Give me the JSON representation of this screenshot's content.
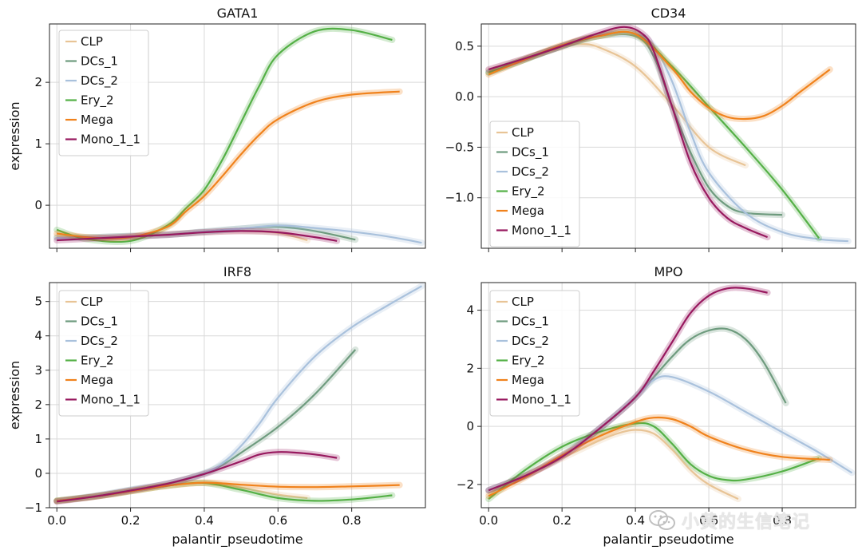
{
  "watermark": {
    "text": "小黄的生信笔记",
    "icon": "wechat-icon"
  },
  "chart_data": [
    {
      "type": "line",
      "title": "GATA1",
      "xlabel": "",
      "ylabel": "expression",
      "xlim": [
        -0.02,
        1.0
      ],
      "ylim": [
        -0.7,
        2.95
      ],
      "xticks": [
        0.0,
        0.2,
        0.4,
        0.6,
        0.8
      ],
      "xticklabels": [
        "",
        "",
        "",
        "",
        ""
      ],
      "yticks": [
        0,
        1,
        2
      ],
      "yticklabels": [
        "0",
        "1",
        "2"
      ],
      "grid": true,
      "legend": {
        "position": "top-left",
        "entries": [
          "CLP",
          "DCs_1",
          "DCs_2",
          "Ery_2",
          "Mega",
          "Mono_1_1"
        ]
      },
      "series": [
        {
          "name": "CLP",
          "color": "#e8c496",
          "x": [
            0.0,
            0.1,
            0.2,
            0.3,
            0.4,
            0.5,
            0.6,
            0.68
          ],
          "y": [
            -0.5,
            -0.52,
            -0.5,
            -0.47,
            -0.44,
            -0.42,
            -0.45,
            -0.57
          ]
        },
        {
          "name": "DCs_1",
          "color": "#6e9b7e",
          "x": [
            0.0,
            0.1,
            0.2,
            0.3,
            0.4,
            0.5,
            0.6,
            0.7,
            0.81
          ],
          "y": [
            -0.53,
            -0.52,
            -0.5,
            -0.48,
            -0.43,
            -0.38,
            -0.35,
            -0.42,
            -0.56
          ]
        },
        {
          "name": "DCs_2",
          "color": "#a9c1dc",
          "x": [
            0.0,
            0.1,
            0.2,
            0.3,
            0.4,
            0.5,
            0.6,
            0.7,
            0.8,
            0.9,
            0.99
          ],
          "y": [
            -0.53,
            -0.52,
            -0.5,
            -0.48,
            -0.43,
            -0.38,
            -0.33,
            -0.37,
            -0.43,
            -0.51,
            -0.61
          ]
        },
        {
          "name": "Ery_2",
          "color": "#54b046",
          "x": [
            0.0,
            0.08,
            0.2,
            0.3,
            0.35,
            0.4,
            0.45,
            0.5,
            0.55,
            0.6,
            0.7,
            0.8,
            0.91
          ],
          "y": [
            -0.4,
            -0.55,
            -0.58,
            -0.33,
            -0.05,
            0.25,
            0.75,
            1.35,
            1.95,
            2.45,
            2.83,
            2.85,
            2.69
          ]
        },
        {
          "name": "Mega",
          "color": "#f0821c",
          "x": [
            0.0,
            0.1,
            0.2,
            0.3,
            0.35,
            0.4,
            0.45,
            0.5,
            0.55,
            0.6,
            0.7,
            0.8,
            0.93
          ],
          "y": [
            -0.46,
            -0.53,
            -0.52,
            -0.35,
            -0.1,
            0.15,
            0.48,
            0.83,
            1.15,
            1.4,
            1.68,
            1.8,
            1.85
          ]
        },
        {
          "name": "Mono_1_1",
          "color": "#98195f",
          "x": [
            0.0,
            0.1,
            0.2,
            0.3,
            0.4,
            0.5,
            0.6,
            0.7,
            0.76
          ],
          "y": [
            -0.57,
            -0.54,
            -0.51,
            -0.48,
            -0.44,
            -0.42,
            -0.44,
            -0.52,
            -0.58
          ]
        }
      ]
    },
    {
      "type": "line",
      "title": "CD34",
      "xlabel": "",
      "ylabel": "",
      "xlim": [
        -0.02,
        1.0
      ],
      "ylim": [
        -1.5,
        0.72
      ],
      "xticks": [
        0.0,
        0.2,
        0.4,
        0.6,
        0.8
      ],
      "xticklabels": [
        "",
        "",
        "",
        "",
        ""
      ],
      "yticks": [
        -1.0,
        -0.5,
        0.0,
        0.5
      ],
      "yticklabels": [
        "−1.0",
        "−0.5",
        "0.0",
        "0.5"
      ],
      "grid": true,
      "legend": {
        "position": "bottom-left",
        "entries": [
          "CLP",
          "DCs_1",
          "DCs_2",
          "Ery_2",
          "Mega",
          "Mono_1_1"
        ]
      },
      "series": [
        {
          "name": "CLP",
          "color": "#e8c496",
          "x": [
            0.0,
            0.1,
            0.2,
            0.25,
            0.3,
            0.4,
            0.5,
            0.6,
            0.7
          ],
          "y": [
            0.26,
            0.38,
            0.49,
            0.52,
            0.49,
            0.3,
            -0.08,
            -0.5,
            -0.68
          ]
        },
        {
          "name": "DCs_1",
          "color": "#6e9b7e",
          "x": [
            0.0,
            0.1,
            0.2,
            0.3,
            0.4,
            0.45,
            0.5,
            0.55,
            0.6,
            0.65,
            0.7,
            0.8
          ],
          "y": [
            0.24,
            0.37,
            0.5,
            0.6,
            0.6,
            0.4,
            -0.1,
            -0.55,
            -0.9,
            -1.08,
            -1.15,
            -1.17
          ]
        },
        {
          "name": "DCs_2",
          "color": "#a9c1dc",
          "x": [
            0.0,
            0.1,
            0.2,
            0.3,
            0.4,
            0.45,
            0.5,
            0.55,
            0.6,
            0.7,
            0.8,
            0.9,
            0.98
          ],
          "y": [
            0.24,
            0.37,
            0.5,
            0.6,
            0.62,
            0.5,
            0.15,
            -0.35,
            -0.75,
            -1.15,
            -1.34,
            -1.41,
            -1.43
          ]
        },
        {
          "name": "Ery_2",
          "color": "#54b046",
          "x": [
            0.0,
            0.1,
            0.2,
            0.3,
            0.4,
            0.5,
            0.6,
            0.7,
            0.8,
            0.9
          ],
          "y": [
            0.24,
            0.37,
            0.5,
            0.6,
            0.62,
            0.3,
            -0.1,
            -0.5,
            -0.92,
            -1.4
          ]
        },
        {
          "name": "Mega",
          "color": "#f0821c",
          "x": [
            0.0,
            0.1,
            0.2,
            0.3,
            0.4,
            0.5,
            0.55,
            0.6,
            0.65,
            0.7,
            0.75,
            0.8,
            0.85,
            0.93
          ],
          "y": [
            0.22,
            0.37,
            0.51,
            0.6,
            0.62,
            0.28,
            0.05,
            -0.11,
            -0.2,
            -0.22,
            -0.19,
            -0.09,
            0.05,
            0.27
          ]
        },
        {
          "name": "Mono_1_1",
          "color": "#98195f",
          "x": [
            0.0,
            0.1,
            0.2,
            0.3,
            0.37,
            0.42,
            0.45,
            0.5,
            0.55,
            0.6,
            0.65,
            0.7,
            0.76
          ],
          "y": [
            0.27,
            0.38,
            0.5,
            0.63,
            0.69,
            0.62,
            0.45,
            -0.1,
            -0.65,
            -1.0,
            -1.2,
            -1.3,
            -1.39
          ]
        }
      ]
    },
    {
      "type": "line",
      "title": "IRF8",
      "xlabel": "palantir_pseudotime",
      "ylabel": "expression",
      "xlim": [
        -0.02,
        1.0
      ],
      "ylim": [
        -1.0,
        5.55
      ],
      "xticks": [
        0.0,
        0.2,
        0.4,
        0.6,
        0.8
      ],
      "xticklabels": [
        "0.0",
        "0.2",
        "0.4",
        "0.6",
        "0.8"
      ],
      "yticks": [
        -1,
        0,
        1,
        2,
        3,
        4,
        5
      ],
      "yticklabels": [
        "−1",
        "0",
        "1",
        "2",
        "3",
        "4",
        "5"
      ],
      "grid": true,
      "legend": {
        "position": "top-left",
        "entries": [
          "CLP",
          "DCs_1",
          "DCs_2",
          "Ery_2",
          "Mega",
          "Mono_1_1"
        ]
      },
      "series": [
        {
          "name": "CLP",
          "color": "#e8c496",
          "x": [
            0.0,
            0.1,
            0.2,
            0.3,
            0.4,
            0.5,
            0.6,
            0.68
          ],
          "y": [
            -0.8,
            -0.68,
            -0.52,
            -0.36,
            -0.28,
            -0.42,
            -0.62,
            -0.72
          ]
        },
        {
          "name": "DCs_1",
          "color": "#6e9b7e",
          "x": [
            0.0,
            0.1,
            0.2,
            0.3,
            0.4,
            0.45,
            0.5,
            0.6,
            0.7,
            0.81
          ],
          "y": [
            -0.8,
            -0.66,
            -0.48,
            -0.3,
            0.0,
            0.25,
            0.6,
            1.35,
            2.3,
            3.6
          ]
        },
        {
          "name": "DCs_2",
          "color": "#a9c1dc",
          "x": [
            0.0,
            0.1,
            0.2,
            0.3,
            0.4,
            0.45,
            0.5,
            0.55,
            0.6,
            0.7,
            0.8,
            0.9,
            0.99
          ],
          "y": [
            -0.8,
            -0.66,
            -0.48,
            -0.3,
            0.0,
            0.3,
            0.8,
            1.45,
            2.2,
            3.4,
            4.25,
            4.9,
            5.45
          ]
        },
        {
          "name": "Ery_2",
          "color": "#54b046",
          "x": [
            0.0,
            0.1,
            0.2,
            0.3,
            0.4,
            0.5,
            0.6,
            0.7,
            0.8,
            0.91
          ],
          "y": [
            -0.8,
            -0.68,
            -0.52,
            -0.36,
            -0.28,
            -0.48,
            -0.72,
            -0.8,
            -0.76,
            -0.64
          ]
        },
        {
          "name": "Mega",
          "color": "#f0821c",
          "x": [
            0.0,
            0.1,
            0.2,
            0.3,
            0.4,
            0.5,
            0.6,
            0.7,
            0.8,
            0.93
          ],
          "y": [
            -0.8,
            -0.68,
            -0.52,
            -0.36,
            -0.27,
            -0.33,
            -0.39,
            -0.4,
            -0.38,
            -0.34
          ]
        },
        {
          "name": "Mono_1_1",
          "color": "#98195f",
          "x": [
            0.0,
            0.1,
            0.2,
            0.3,
            0.4,
            0.5,
            0.55,
            0.6,
            0.65,
            0.7,
            0.76
          ],
          "y": [
            -0.82,
            -0.68,
            -0.5,
            -0.3,
            -0.02,
            0.35,
            0.55,
            0.62,
            0.6,
            0.55,
            0.45
          ]
        }
      ]
    },
    {
      "type": "line",
      "title": "MPO",
      "xlabel": "palantir_pseudotime",
      "ylabel": "",
      "xlim": [
        -0.02,
        1.0
      ],
      "ylim": [
        -2.8,
        4.95
      ],
      "xticks": [
        0.0,
        0.2,
        0.4,
        0.6,
        0.8
      ],
      "xticklabels": [
        "0.0",
        "0.2",
        "0.4",
        "0.6",
        "0.8"
      ],
      "yticks": [
        -2,
        0,
        2,
        4
      ],
      "yticklabels": [
        "−2",
        "0",
        "2",
        "4"
      ],
      "grid": true,
      "legend": {
        "position": "top-left",
        "entries": [
          "CLP",
          "DCs_1",
          "DCs_2",
          "Ery_2",
          "Mega",
          "Mono_1_1"
        ]
      },
      "series": [
        {
          "name": "CLP",
          "color": "#e8c496",
          "x": [
            0.0,
            0.1,
            0.2,
            0.3,
            0.35,
            0.4,
            0.45,
            0.5,
            0.55,
            0.6,
            0.68
          ],
          "y": [
            -2.3,
            -1.7,
            -1.1,
            -0.5,
            -0.25,
            -0.12,
            -0.25,
            -0.8,
            -1.5,
            -2.0,
            -2.5
          ]
        },
        {
          "name": "DCs_1",
          "color": "#6e9b7e",
          "x": [
            0.0,
            0.1,
            0.2,
            0.3,
            0.4,
            0.5,
            0.55,
            0.6,
            0.65,
            0.7,
            0.75,
            0.81
          ],
          "y": [
            -2.2,
            -1.7,
            -1.0,
            -0.1,
            1.0,
            2.4,
            3.0,
            3.3,
            3.35,
            3.0,
            2.2,
            0.8
          ]
        },
        {
          "name": "DCs_2",
          "color": "#a9c1dc",
          "x": [
            0.0,
            0.1,
            0.2,
            0.3,
            0.4,
            0.45,
            0.5,
            0.6,
            0.7,
            0.8,
            0.9,
            0.99
          ],
          "y": [
            -2.2,
            -1.7,
            -1.0,
            -0.1,
            1.0,
            1.6,
            1.7,
            1.2,
            0.5,
            -0.2,
            -0.9,
            -1.6
          ]
        },
        {
          "name": "Ery_2",
          "color": "#54b046",
          "x": [
            0.0,
            0.1,
            0.2,
            0.3,
            0.4,
            0.45,
            0.5,
            0.55,
            0.6,
            0.65,
            0.7,
            0.8,
            0.9
          ],
          "y": [
            -2.5,
            -1.5,
            -0.7,
            -0.2,
            0.1,
            0.0,
            -0.6,
            -1.3,
            -1.7,
            -1.85,
            -1.83,
            -1.55,
            -1.1
          ]
        },
        {
          "name": "Mega",
          "color": "#f0821c",
          "x": [
            0.0,
            0.1,
            0.2,
            0.3,
            0.4,
            0.45,
            0.5,
            0.55,
            0.6,
            0.7,
            0.8,
            0.93
          ],
          "y": [
            -2.4,
            -1.75,
            -1.0,
            -0.35,
            0.15,
            0.3,
            0.25,
            0.0,
            -0.35,
            -0.8,
            -1.05,
            -1.15
          ]
        },
        {
          "name": "Mono_1_1",
          "color": "#98195f",
          "x": [
            0.0,
            0.1,
            0.2,
            0.3,
            0.4,
            0.45,
            0.5,
            0.55,
            0.6,
            0.65,
            0.7,
            0.76
          ],
          "y": [
            -2.2,
            -1.7,
            -1.05,
            -0.1,
            1.0,
            1.9,
            2.9,
            3.9,
            4.5,
            4.75,
            4.75,
            4.6
          ]
        }
      ]
    }
  ]
}
